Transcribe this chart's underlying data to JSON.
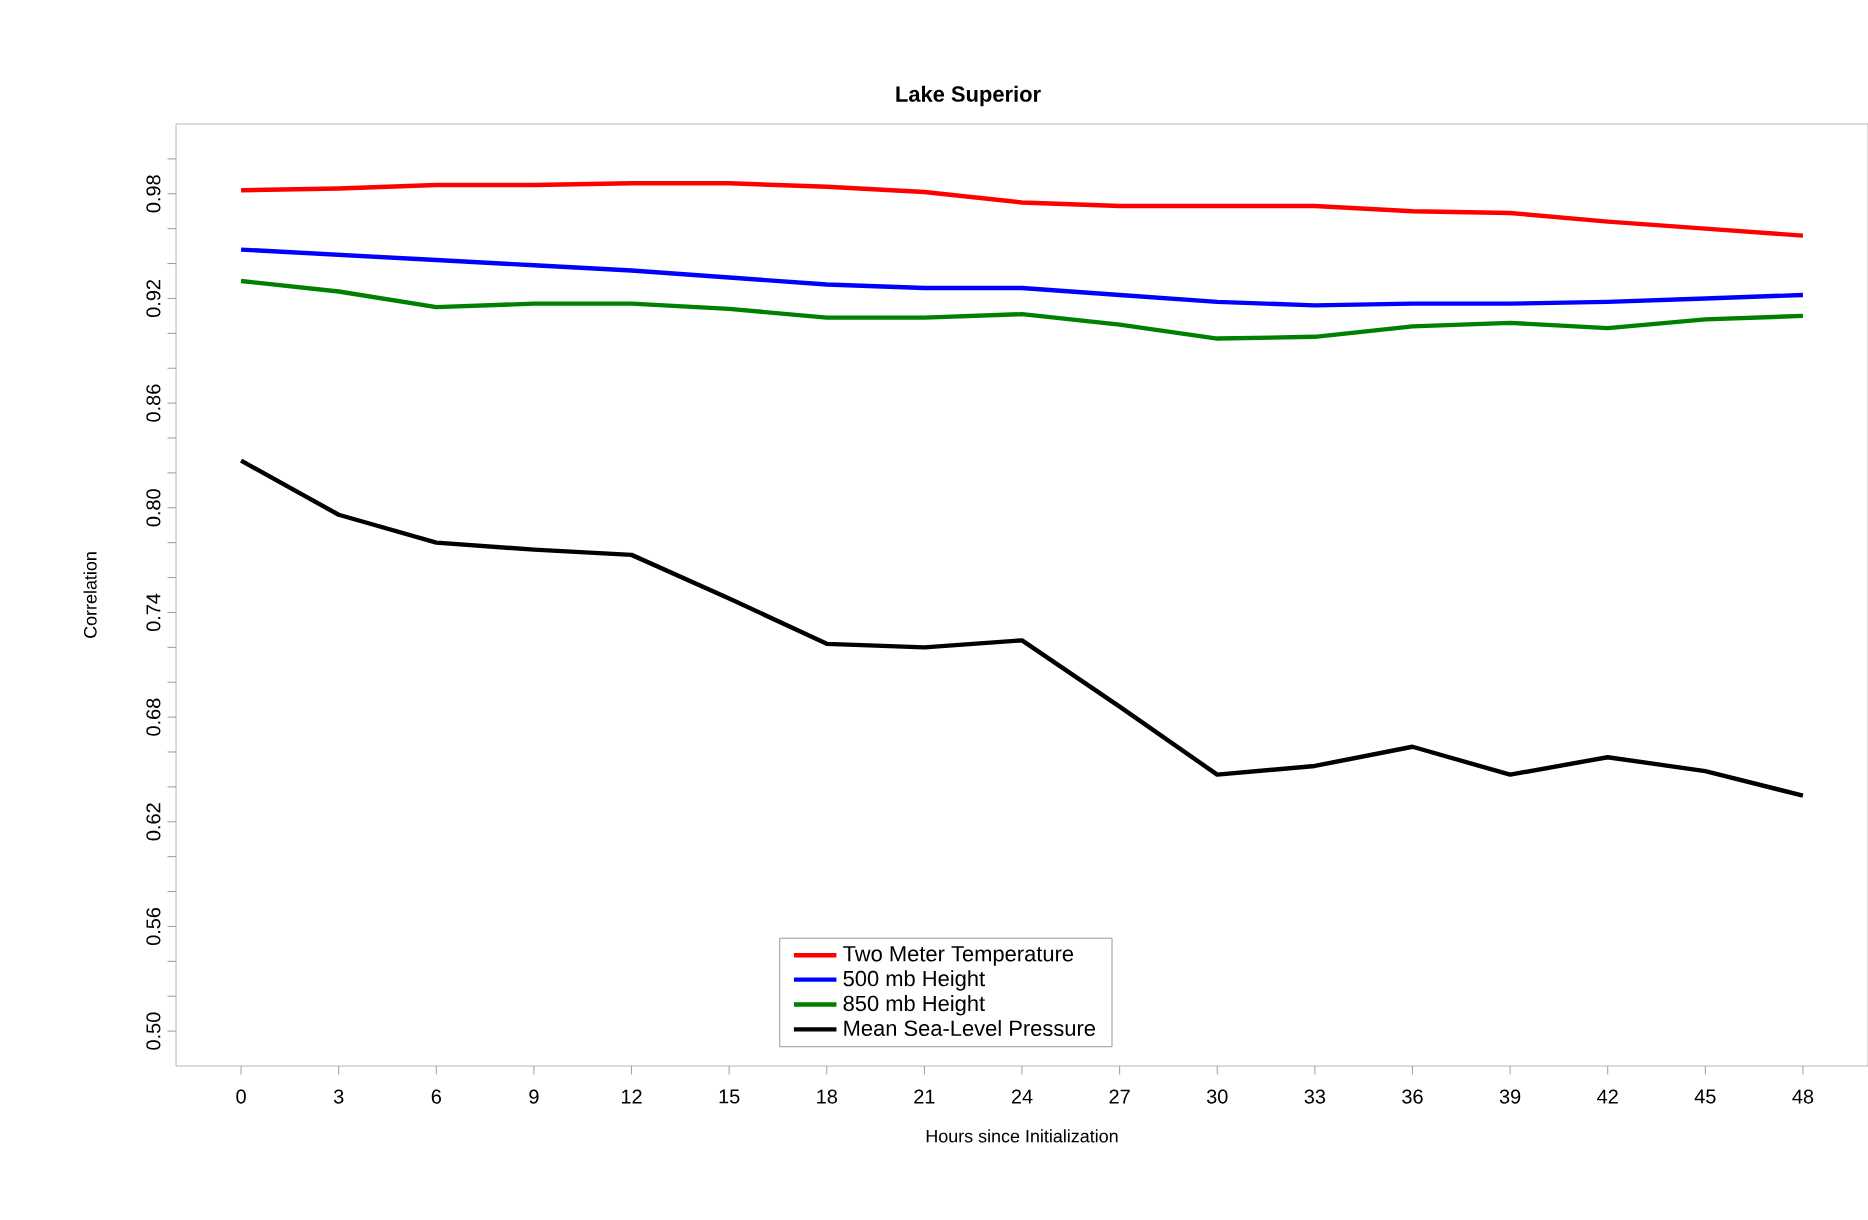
{
  "chart_data": {
    "type": "line",
    "title": "Lake Superior",
    "xlabel": "Hours since Initialization",
    "ylabel": "Correlation",
    "x": [
      0,
      3,
      6,
      9,
      12,
      15,
      18,
      21,
      24,
      27,
      30,
      33,
      36,
      39,
      42,
      45,
      48
    ],
    "series": [
      {
        "name": "Two Meter Temperature",
        "color": "#ff0000",
        "values": [
          0.982,
          0.983,
          0.985,
          0.985,
          0.986,
          0.986,
          0.984,
          0.981,
          0.975,
          0.973,
          0.973,
          0.973,
          0.97,
          0.969,
          0.964,
          0.96,
          0.956
        ]
      },
      {
        "name": "500 mb Height",
        "color": "#0000ff",
        "values": [
          0.948,
          0.945,
          0.942,
          0.939,
          0.936,
          0.932,
          0.928,
          0.926,
          0.926,
          0.922,
          0.918,
          0.916,
          0.917,
          0.917,
          0.918,
          0.92,
          0.922
        ]
      },
      {
        "name": "850 mb Height",
        "color": "#008000",
        "values": [
          0.93,
          0.924,
          0.915,
          0.917,
          0.917,
          0.914,
          0.909,
          0.909,
          0.911,
          0.905,
          0.897,
          0.898,
          0.904,
          0.906,
          0.903,
          0.908,
          0.91
        ]
      },
      {
        "name": "Mean Sea-Level Pressure",
        "color": "#000000",
        "values": [
          0.827,
          0.796,
          0.78,
          0.776,
          0.773,
          0.748,
          0.722,
          0.72,
          0.724,
          0.686,
          0.647,
          0.652,
          0.663,
          0.647,
          0.657,
          0.649,
          0.635
        ]
      }
    ],
    "xlim": [
      -2,
      50
    ],
    "ylim": [
      0.48,
      1.02
    ],
    "xticks": [
      0,
      3,
      6,
      9,
      12,
      15,
      18,
      21,
      24,
      27,
      30,
      33,
      36,
      39,
      42,
      45,
      48
    ],
    "yticks": [
      {
        "value": 0.5,
        "label": "0.50"
      },
      {
        "value": 0.52,
        "label": null
      },
      {
        "value": 0.54,
        "label": null
      },
      {
        "value": 0.56,
        "label": "0.56"
      },
      {
        "value": 0.58,
        "label": null
      },
      {
        "value": 0.6,
        "label": null
      },
      {
        "value": 0.62,
        "label": "0.62"
      },
      {
        "value": 0.64,
        "label": null
      },
      {
        "value": 0.66,
        "label": null
      },
      {
        "value": 0.68,
        "label": "0.68"
      },
      {
        "value": 0.7,
        "label": null
      },
      {
        "value": 0.72,
        "label": null
      },
      {
        "value": 0.74,
        "label": "0.74"
      },
      {
        "value": 0.76,
        "label": null
      },
      {
        "value": 0.78,
        "label": null
      },
      {
        "value": 0.8,
        "label": "0.80"
      },
      {
        "value": 0.82,
        "label": null
      },
      {
        "value": 0.84,
        "label": null
      },
      {
        "value": 0.86,
        "label": "0.86"
      },
      {
        "value": 0.88,
        "label": null
      },
      {
        "value": 0.9,
        "label": null
      },
      {
        "value": 0.92,
        "label": "0.92"
      },
      {
        "value": 0.94,
        "label": null
      },
      {
        "value": 0.96,
        "label": null
      },
      {
        "value": 0.98,
        "label": "0.98"
      },
      {
        "value": 1.0,
        "label": null
      }
    ],
    "legend": "bottom",
    "grid": false,
    "marker": "none",
    "line_style": "solid"
  }
}
